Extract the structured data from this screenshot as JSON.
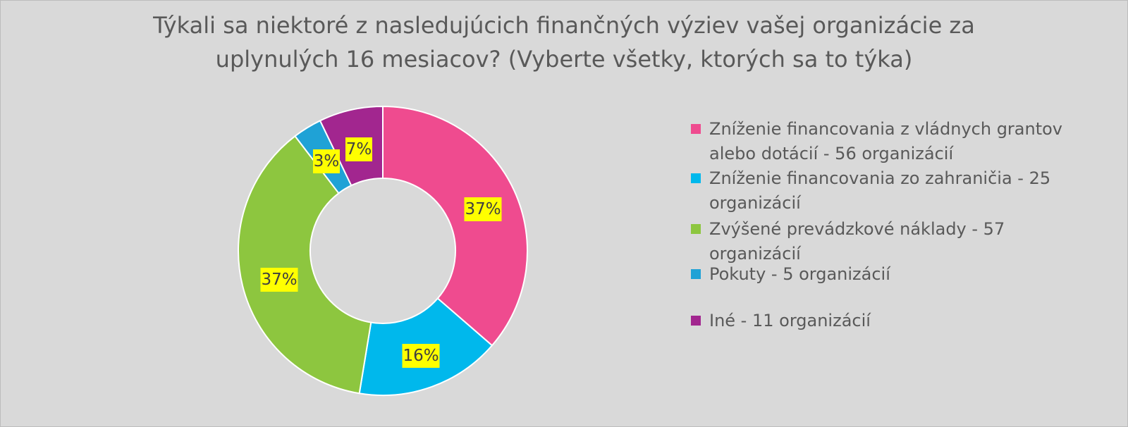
{
  "chart_data": {
    "type": "pie",
    "donut": true,
    "title": "Týkali sa niektoré z nasledujúcich finančných výziev vašej organizácie za uplynulých 16 mesiacov? (Vyberte všetky, ktorých sa to týka)",
    "slices": [
      {
        "label": "Zníženie financovania z vládnych grantov alebo dotácií - 56 organizácií",
        "value": 56,
        "percent_label": "37%",
        "color": "#ef4b8f"
      },
      {
        "label": "Zníženie financovania zo zahraničia - 25 organizácií",
        "value": 25,
        "percent_label": "16%",
        "color": "#00b8ec"
      },
      {
        "label": "Zvýšené prevádzkové náklady - 57 organizácií",
        "value": 57,
        "percent_label": "37%",
        "color": "#8dc63f"
      },
      {
        "label": "Pokuty - 5 organizácií",
        "value": 5,
        "percent_label": "3%",
        "color": "#1fa2d6"
      },
      {
        "label": "Iné - 11 organizácií",
        "value": 11,
        "percent_label": "7%",
        "color": "#a2268f"
      }
    ],
    "data_label_background": "#ffff00",
    "legend_position": "right"
  }
}
